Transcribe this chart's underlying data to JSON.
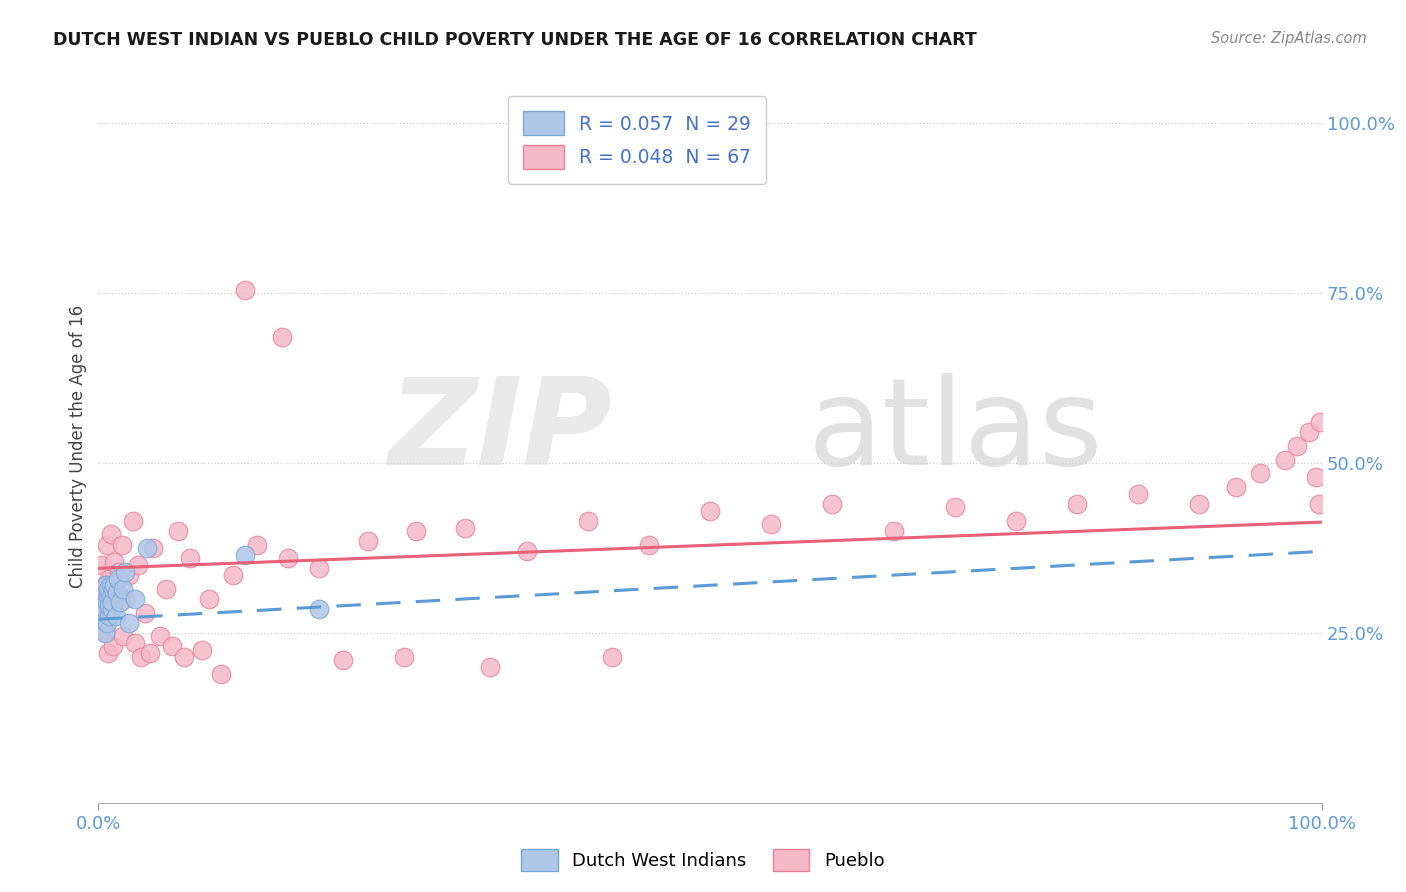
{
  "title": "DUTCH WEST INDIAN VS PUEBLO CHILD POVERTY UNDER THE AGE OF 16 CORRELATION CHART",
  "source": "Source: ZipAtlas.com",
  "ylabel": "Child Poverty Under the Age of 16",
  "ytick_labels": [
    "25.0%",
    "50.0%",
    "75.0%",
    "100.0%"
  ],
  "ytick_positions": [
    0.25,
    0.5,
    0.75,
    1.0
  ],
  "legend_items": [
    {
      "label": "R = 0.057  N = 29",
      "color": "#aec6e8"
    },
    {
      "label": "R = 0.048  N = 67",
      "color": "#f4b8c8"
    }
  ],
  "legend_bottom": [
    "Dutch West Indians",
    "Pueblo"
  ],
  "dutch_color": "#aec6e8",
  "pueblo_color": "#f4b8c8",
  "dutch_edge": "#7ba7d4",
  "pueblo_edge": "#e8829a",
  "background_color": "#ffffff",
  "dutch_line_color": "#5b9bd5",
  "pueblo_line_color": "#e8607a",
  "dutch_x": [
    0.003,
    0.004,
    0.005,
    0.005,
    0.006,
    0.006,
    0.007,
    0.007,
    0.008,
    0.008,
    0.009,
    0.009,
    0.01,
    0.01,
    0.011,
    0.011,
    0.012,
    0.013,
    0.014,
    0.015,
    0.016,
    0.018,
    0.02,
    0.022,
    0.025,
    0.03,
    0.04,
    0.12,
    0.18
  ],
  "dutch_y": [
    0.27,
    0.3,
    0.25,
    0.285,
    0.31,
    0.32,
    0.265,
    0.295,
    0.305,
    0.315,
    0.275,
    0.29,
    0.305,
    0.32,
    0.285,
    0.295,
    0.315,
    0.32,
    0.275,
    0.31,
    0.33,
    0.295,
    0.315,
    0.34,
    0.265,
    0.3,
    0.375,
    0.365,
    0.285
  ],
  "pueblo_x": [
    0.003,
    0.005,
    0.007,
    0.008,
    0.009,
    0.01,
    0.011,
    0.013,
    0.015,
    0.017,
    0.019,
    0.022,
    0.025,
    0.028,
    0.032,
    0.038,
    0.045,
    0.055,
    0.065,
    0.075,
    0.09,
    0.11,
    0.13,
    0.155,
    0.18,
    0.22,
    0.26,
    0.3,
    0.35,
    0.4,
    0.45,
    0.5,
    0.55,
    0.6,
    0.65,
    0.7,
    0.75,
    0.8,
    0.85,
    0.9,
    0.93,
    0.95,
    0.97,
    0.98,
    0.99,
    0.995,
    0.998,
    0.999,
    0.005,
    0.006,
    0.008,
    0.012,
    0.02,
    0.03,
    0.035,
    0.042,
    0.05,
    0.06,
    0.07,
    0.085,
    0.1,
    0.12,
    0.15,
    0.2,
    0.25,
    0.32,
    0.42
  ],
  "pueblo_y": [
    0.35,
    0.3,
    0.38,
    0.28,
    0.33,
    0.395,
    0.315,
    0.355,
    0.3,
    0.34,
    0.38,
    0.3,
    0.335,
    0.415,
    0.35,
    0.28,
    0.375,
    0.315,
    0.4,
    0.36,
    0.3,
    0.335,
    0.38,
    0.36,
    0.345,
    0.385,
    0.4,
    0.405,
    0.37,
    0.415,
    0.38,
    0.43,
    0.41,
    0.44,
    0.4,
    0.435,
    0.415,
    0.44,
    0.455,
    0.44,
    0.465,
    0.485,
    0.505,
    0.525,
    0.545,
    0.48,
    0.44,
    0.56,
    0.32,
    0.25,
    0.22,
    0.23,
    0.245,
    0.235,
    0.215,
    0.22,
    0.245,
    0.23,
    0.215,
    0.225,
    0.19,
    0.755,
    0.685,
    0.21,
    0.215,
    0.2,
    0.215
  ]
}
